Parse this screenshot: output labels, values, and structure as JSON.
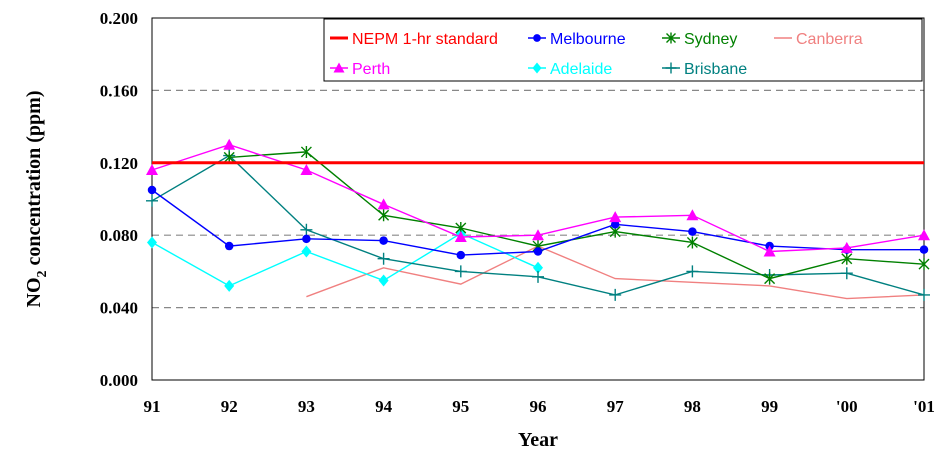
{
  "chart_data": {
    "type": "line",
    "title": "",
    "xlabel": "Year",
    "ylabel": "NO2 concentration (ppm)",
    "ylabel_parts": {
      "pre": "NO",
      "sub": "2",
      "post": " concentration (ppm)"
    },
    "categories": [
      "91",
      "92",
      "93",
      "94",
      "95",
      "96",
      "97",
      "98",
      "99",
      "'00",
      "'01"
    ],
    "ylim": [
      0,
      0.2
    ],
    "yticks": [
      "0.000",
      "0.040",
      "0.080",
      "0.120",
      "0.160",
      "0.200"
    ],
    "ytick_values": [
      0,
      0.04,
      0.08,
      0.12,
      0.16,
      0.2
    ],
    "grid": "dashed horizontal",
    "legend_position": "top-right",
    "series": [
      {
        "name": "NEPM 1-hr standard",
        "color": "#ff0000",
        "marker": "none",
        "values": [
          0.12,
          0.12,
          0.12,
          0.12,
          0.12,
          0.12,
          0.12,
          0.12,
          0.12,
          0.12,
          0.12
        ]
      },
      {
        "name": "Melbourne",
        "color": "#0000ff",
        "marker": "circle",
        "values": [
          0.105,
          0.074,
          0.078,
          0.077,
          0.069,
          0.071,
          0.086,
          0.082,
          0.074,
          0.072,
          0.072
        ]
      },
      {
        "name": "Sydney",
        "color": "#008000",
        "marker": "asterisk",
        "values": [
          null,
          0.123,
          0.126,
          0.091,
          0.084,
          0.074,
          0.082,
          0.076,
          0.056,
          0.067,
          0.064
        ]
      },
      {
        "name": "Canberra",
        "color": "#f08080",
        "marker": "none",
        "values": [
          null,
          null,
          0.046,
          0.062,
          0.053,
          0.074,
          0.056,
          0.054,
          0.052,
          0.045,
          0.047
        ]
      },
      {
        "name": "Perth",
        "color": "#ff00ff",
        "marker": "triangle",
        "values": [
          0.116,
          0.13,
          0.116,
          0.097,
          0.079,
          0.08,
          0.09,
          0.091,
          0.071,
          0.073,
          0.08
        ]
      },
      {
        "name": "Adelaide",
        "color": "#00ffff",
        "marker": "diamond",
        "values": [
          0.076,
          0.052,
          0.071,
          0.055,
          0.081,
          0.062,
          null,
          null,
          null,
          null,
          null
        ]
      },
      {
        "name": "Brisbane",
        "color": "#008080",
        "marker": "plus",
        "values": [
          0.099,
          0.124,
          0.083,
          0.067,
          0.06,
          0.057,
          0.047,
          0.06,
          0.058,
          0.059,
          0.047
        ]
      }
    ]
  }
}
